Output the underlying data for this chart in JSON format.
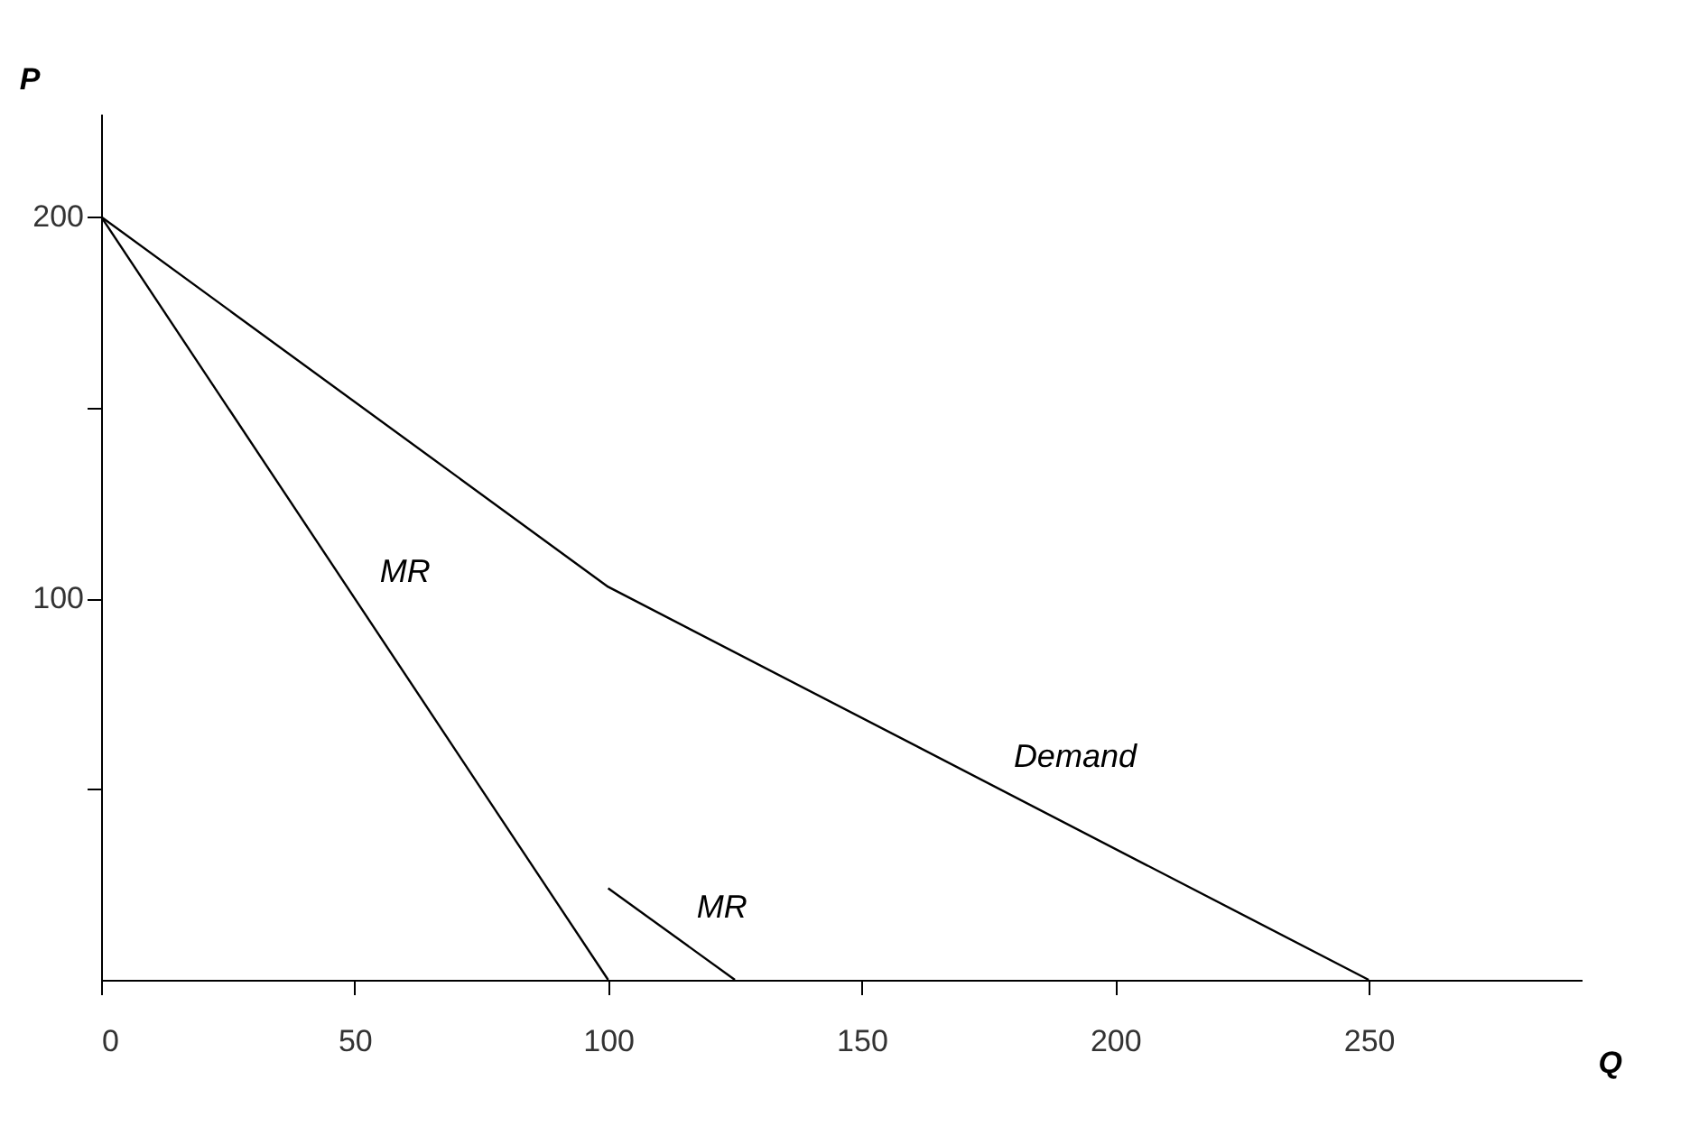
{
  "chart_data": {
    "type": "line",
    "xlabel": "Q",
    "ylabel": "P",
    "xlim": [
      0,
      292
    ],
    "ylim": [
      0,
      227
    ],
    "xticks": [
      0,
      50,
      100,
      150,
      200,
      250
    ],
    "yticks": [
      {
        "value": 50,
        "label": null
      },
      100,
      {
        "value": 150,
        "label": null
      },
      200
    ],
    "grid": false,
    "marker": "none",
    "line_style": "solid",
    "series": [
      {
        "name": "Demand",
        "x": [
          0,
          100,
          250
        ],
        "values": [
          200,
          103,
          0
        ],
        "color": "#000000"
      },
      {
        "name": "MR",
        "x": [
          0,
          100
        ],
        "values": [
          200,
          0
        ],
        "color": "#000000"
      },
      {
        "name": "MR",
        "x": [
          100,
          125
        ],
        "values": [
          24,
          0
        ],
        "color": "#000000"
      }
    ]
  }
}
